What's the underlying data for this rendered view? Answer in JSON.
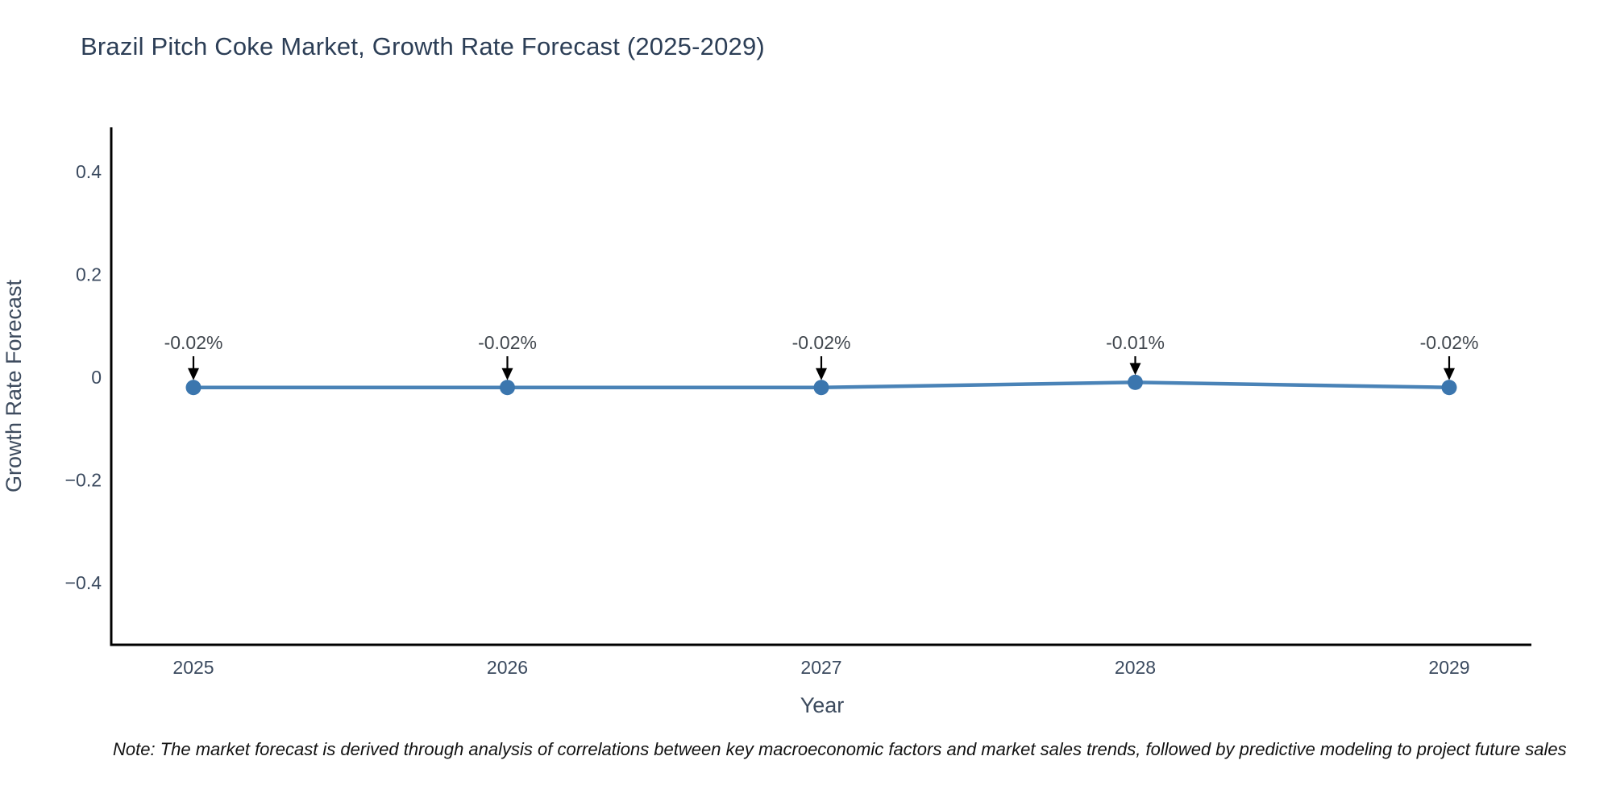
{
  "title": "Brazil Pitch Coke Market, Growth Rate Forecast (2025-2029)",
  "note": "Note: The market forecast is derived through analysis of correlations between key macroeconomic factors and market sales trends, followed by predictive modeling to project future sales",
  "chart_data": {
    "type": "line",
    "title": "Brazil Pitch Coke Market, Growth Rate Forecast (2025-2029)",
    "xlabel": "Year",
    "ylabel": "Growth Rate Forecast",
    "x": [
      2025,
      2026,
      2027,
      2028,
      2029
    ],
    "xtick_labels": [
      "2025",
      "2026",
      "2027",
      "2028",
      "2029"
    ],
    "values": [
      -0.02,
      -0.02,
      -0.02,
      -0.01,
      -0.02
    ],
    "point_labels": [
      "-0.02%",
      "-0.02%",
      "-0.02%",
      "-0.01%",
      "-0.02%"
    ],
    "yticks": [
      0.4,
      0.2,
      0,
      -0.2,
      -0.4
    ],
    "ytick_labels": [
      "0.4",
      "0.2",
      "0",
      "−0.2",
      "−0.4"
    ],
    "ylim": [
      -0.53,
      0.5
    ],
    "grid": false,
    "legend": "none",
    "line_color": "#4a83b7",
    "marker_color": "#3b76ae",
    "arrow_color": "#000000",
    "spine_color": "#000000",
    "tick_label_color": "#3b4a5f",
    "axis_label_color": "#3d4b5e",
    "annotation_color": "#41474e"
  }
}
